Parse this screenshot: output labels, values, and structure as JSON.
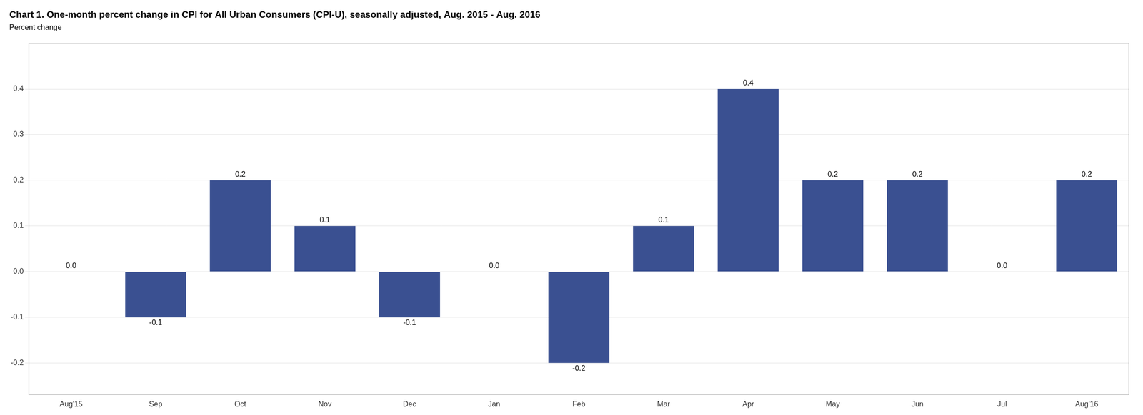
{
  "chart_data": {
    "type": "bar",
    "title": "Chart 1. One-month percent change in CPI for All Urban Consumers (CPI-U), seasonally adjusted, Aug. 2015 - Aug. 2016",
    "ylabel": "Percent change",
    "categories": [
      "Aug'15",
      "Sep",
      "Oct",
      "Nov",
      "Dec",
      "Jan",
      "Feb",
      "Mar",
      "Apr",
      "May",
      "Jun",
      "Jul",
      "Aug'16"
    ],
    "values": [
      0.0,
      -0.1,
      0.2,
      0.1,
      -0.1,
      0.0,
      -0.2,
      0.1,
      0.4,
      0.2,
      0.2,
      0.0,
      0.2
    ],
    "value_labels": [
      "0.0",
      "-0.1",
      "0.2",
      "0.1",
      "-0.1",
      "0.0",
      "-0.2",
      "0.1",
      "0.4",
      "0.2",
      "0.2",
      "0.0",
      "0.2"
    ],
    "data_labels": true,
    "color": "#3A5091",
    "ylim": [
      -0.27,
      0.5
    ],
    "yticks": [
      -0.2,
      -0.1,
      {
        "value": 0,
        "label": "0.0"
      },
      0.1,
      0.2,
      0.3,
      0.4
    ],
    "grid": true
  }
}
